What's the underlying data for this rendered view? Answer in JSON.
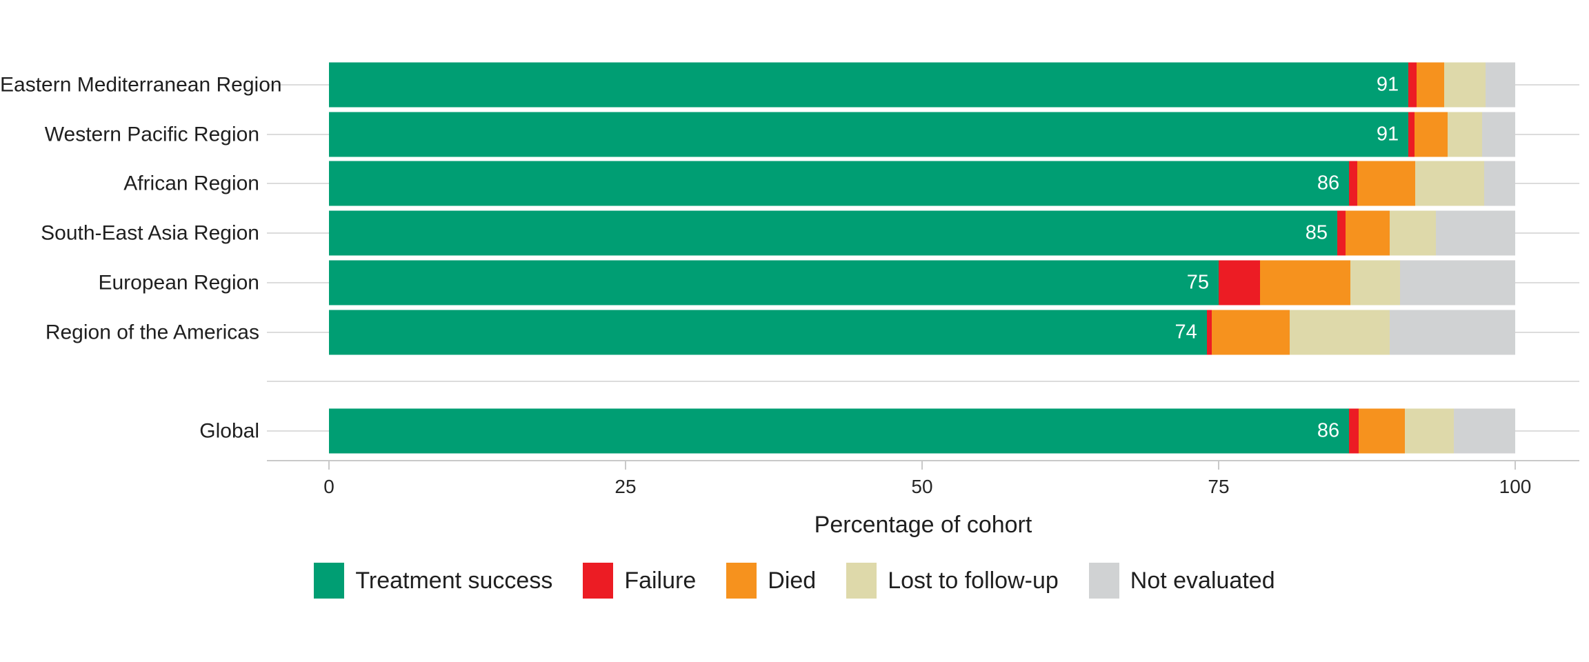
{
  "chart_data": {
    "type": "bar",
    "orientation": "horizontal",
    "stacked": true,
    "xlabel": "Percentage of cohort",
    "xlim": [
      0,
      100
    ],
    "xticks": [
      "0",
      "25",
      "50",
      "75",
      "100"
    ],
    "grid": "horizontal-row-lines",
    "legend_position": "bottom-center",
    "series": [
      {
        "name": "Treatment success",
        "color": "#009E73"
      },
      {
        "name": "Failure",
        "color": "#EC1C24"
      },
      {
        "name": "Died",
        "color": "#F6921E"
      },
      {
        "name": "Lost to follow-up",
        "color": "#DED9AA"
      },
      {
        "name": "Not evaluated",
        "color": "#D0D2D3"
      }
    ],
    "rows": [
      {
        "category": "Eastern Mediterranean Region",
        "values": [
          91,
          0.7,
          2.3,
          3.5,
          2.5
        ],
        "value_label": "91"
      },
      {
        "category": "Western Pacific Region",
        "values": [
          91,
          0.5,
          2.8,
          2.9,
          2.8
        ],
        "value_label": "91"
      },
      {
        "category": "African Region",
        "values": [
          86,
          0.7,
          4.9,
          5.8,
          2.6
        ],
        "value_label": "86"
      },
      {
        "category": "South-East Asia Region",
        "values": [
          85,
          0.7,
          3.7,
          3.9,
          6.7
        ],
        "value_label": "85"
      },
      {
        "category": "European Region",
        "values": [
          75,
          3.5,
          7.6,
          4.2,
          9.7
        ],
        "value_label": "75"
      },
      {
        "category": "Region of the Americas",
        "values": [
          74,
          0.4,
          6.6,
          8.4,
          10.6
        ],
        "value_label": "74"
      },
      {
        "category": "Global",
        "values": [
          86,
          0.8,
          3.9,
          4.1,
          5.2
        ],
        "value_label": "86"
      }
    ],
    "separator_after_index": 5
  }
}
